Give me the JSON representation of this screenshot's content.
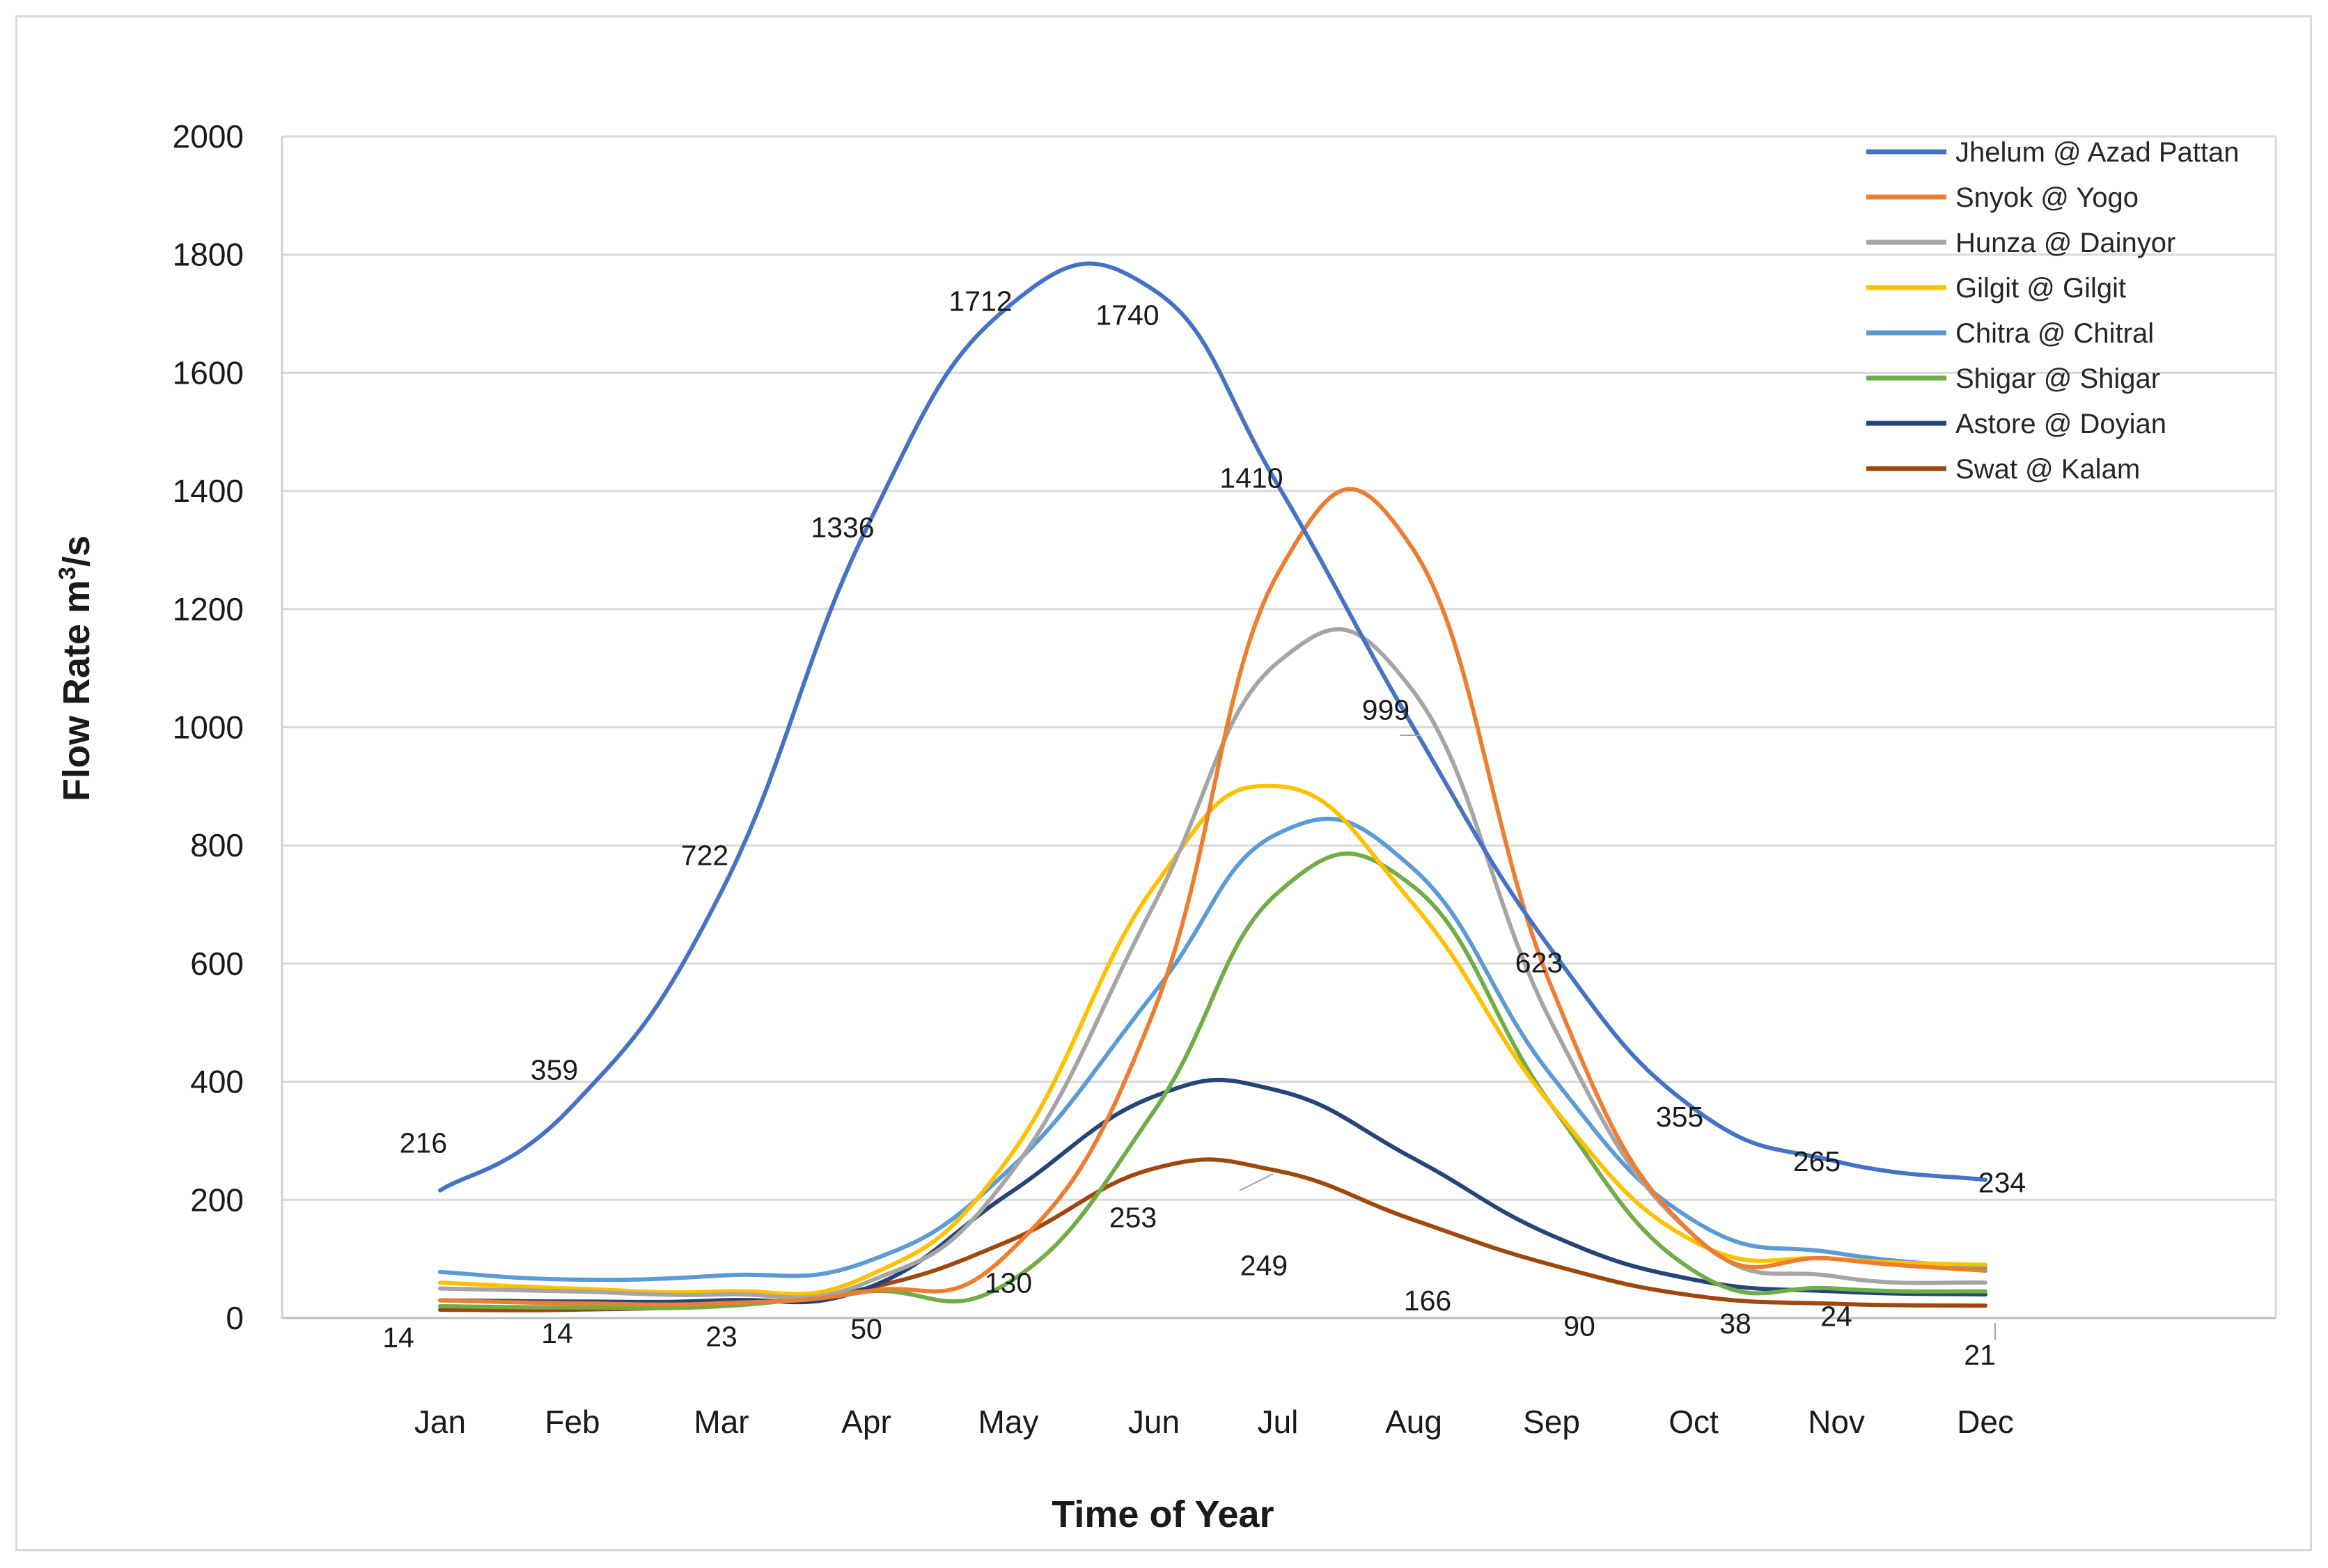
{
  "chart_data": {
    "type": "line",
    "title": "",
    "xlabel": "Time of Year",
    "ylabel": "Flow Rate m",
    "ylabel_superscript": "3",
    "ylabel_suffix": "/s",
    "categories": [
      "Jan",
      "Feb",
      "Mar",
      "Apr",
      "May",
      "Jun",
      "Jul",
      "Aug",
      "Sep",
      "Oct",
      "Nov",
      "Dec"
    ],
    "ylim": [
      0,
      2000
    ],
    "yticks": [
      "0",
      "200",
      "400",
      "600",
      "800",
      "1000",
      "1200",
      "1400",
      "1600",
      "1800",
      "2000"
    ],
    "grid": true,
    "legend_position": "top-right",
    "series": [
      {
        "name": "Jhelum @ Azad Pattan",
        "color": "#4472c4",
        "values": [
          216,
          359,
          722,
          1336,
          1712,
          1740,
          1410,
          999,
          623,
          355,
          265,
          234
        ]
      },
      {
        "name": "Snyok @ Yogo",
        "color": "#ed7d31",
        "values": [
          30,
          25,
          25,
          45,
          110,
          520,
          1260,
          1300,
          560,
          140,
          100,
          80
        ]
      },
      {
        "name": "Hunza @ Dainyor",
        "color": "#a5a5a5",
        "values": [
          50,
          45,
          40,
          60,
          240,
          700,
          1110,
          1060,
          500,
          140,
          70,
          60
        ]
      },
      {
        "name": "Gilgit @ Gilgit",
        "color": "#ffc000",
        "values": [
          60,
          50,
          45,
          70,
          270,
          730,
          900,
          700,
          360,
          130,
          100,
          90
        ]
      },
      {
        "name": "Chitra @ Chitral",
        "color": "#5b9bd5",
        "values": [
          78,
          65,
          72,
          95,
          250,
          550,
          820,
          760,
          410,
          165,
          110,
          85
        ]
      },
      {
        "name": "Shigar @ Shigar",
        "color": "#70ad47",
        "values": [
          20,
          18,
          20,
          45,
          60,
          350,
          720,
          730,
          360,
          80,
          50,
          45
        ]
      },
      {
        "name": "Astore @ Doyian",
        "color": "#264478",
        "values": [
          30,
          28,
          30,
          50,
          210,
          375,
          385,
          270,
          140,
          65,
          45,
          40
        ]
      },
      {
        "name": "Swat @ Kalam",
        "color": "#9e480e",
        "values": [
          14,
          14,
          23,
          50,
          130,
          253,
          249,
          166,
          90,
          38,
          24,
          21
        ]
      }
    ],
    "data_labels": {
      "Jhelum @ Azad Pattan": [
        "216",
        "359",
        "722",
        "1336",
        "1712",
        "1740",
        "1410",
        "999",
        "623",
        "355",
        "265",
        "234"
      ],
      "Swat @ Kalam": [
        "14",
        "14",
        "23",
        "50",
        "130",
        "253",
        "249",
        "166",
        "90",
        "38",
        "24",
        "21"
      ]
    }
  }
}
